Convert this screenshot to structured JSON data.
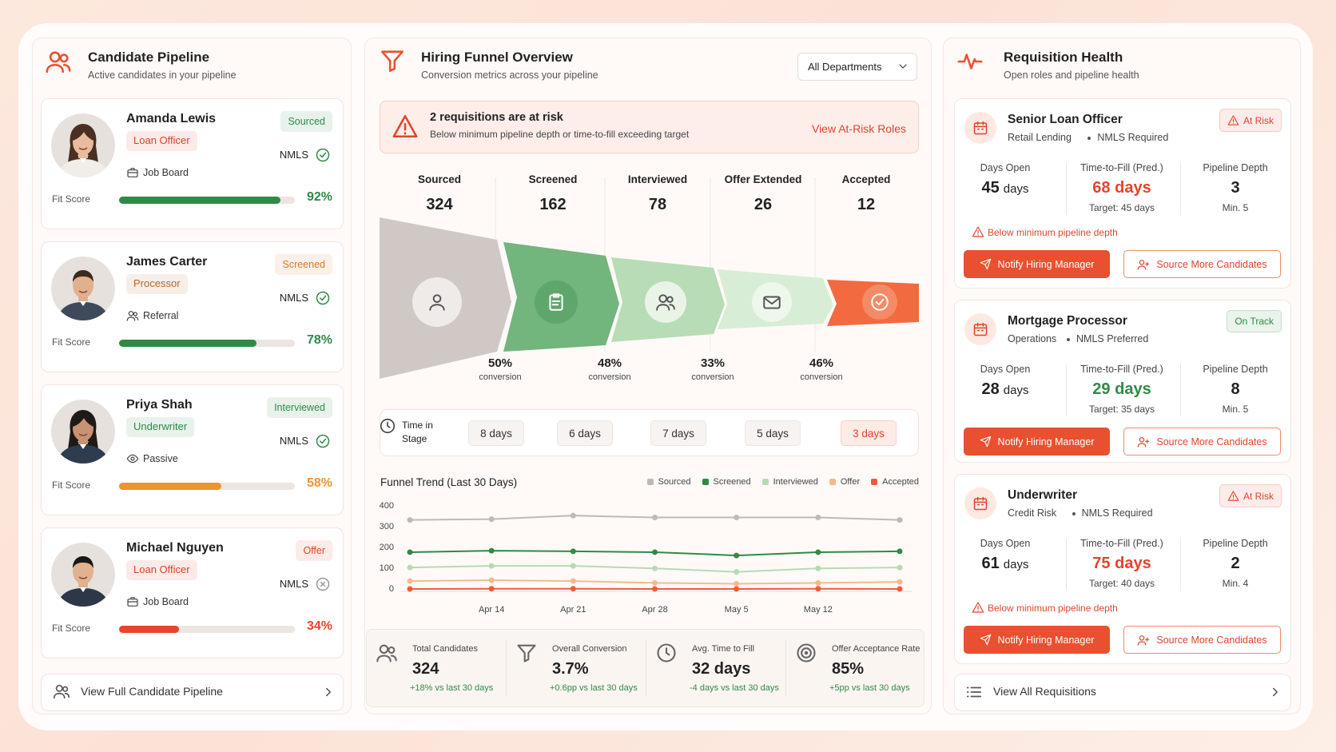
{
  "pipeline": {
    "title": "Candidate Pipeline",
    "subtitle": "Active candidates in your pipeline",
    "fit_score_label": "Fit Score",
    "candidates": [
      {
        "name": "Amanda Lewis",
        "stage": "Sourced",
        "stage_color": "#2e8b45",
        "role": "Loan Officer",
        "role_color": "#d9442a",
        "license": "NMLS",
        "license_verified": true,
        "source": "Job Board",
        "fit": 92,
        "fit_label": "92%",
        "fit_color": "#2e8b45"
      },
      {
        "name": "James Carter",
        "stage": "Screened",
        "stage_color": "#d97a2b",
        "role": "Processor",
        "role_color": "#b8652a",
        "license": "NMLS",
        "license_verified": true,
        "source": "Referral",
        "fit": 78,
        "fit_label": "78%",
        "fit_color": "#2e8b45"
      },
      {
        "name": "Priya Shah",
        "stage": "Interviewed",
        "stage_color": "#2e8b45",
        "role": "Underwriter",
        "role_color": "#2e8b45",
        "license": "NMLS",
        "license_verified": true,
        "source": "Passive",
        "fit": 58,
        "fit_label": "58%",
        "fit_color": "#f0932b"
      },
      {
        "name": "Michael Nguyen",
        "stage": "Offer",
        "stage_color": "#e0452b",
        "role": "Loan Officer",
        "role_color": "#d9442a",
        "license": "NMLS",
        "license_verified": false,
        "source": "Job Board",
        "fit": 34,
        "fit_label": "34%",
        "fit_color": "#e8452b"
      }
    ],
    "footer": "View Full Candidate Pipeline"
  },
  "funnel": {
    "title": "Hiring Funnel Overview",
    "subtitle": "Conversion metrics across your pipeline",
    "filter": "All Departments",
    "alert": {
      "title": "2 requisitions are at risk",
      "text": "Below minimum pipeline depth or time-to-fill exceeding target",
      "action": "View At-Risk Roles"
    },
    "stages": [
      {
        "name": "Sourced",
        "count": 324,
        "time": "8 days"
      },
      {
        "name": "Screened",
        "count": 162,
        "time": "6 days"
      },
      {
        "name": "Interviewed",
        "count": 78,
        "time": "7 days"
      },
      {
        "name": "Offer Extended",
        "count": 26,
        "time": "5 days"
      },
      {
        "name": "Accepted",
        "count": 12,
        "time": "3 days"
      }
    ],
    "conversions": [
      "50%",
      "48%",
      "33%",
      "46%"
    ],
    "conversion_text": "conversion",
    "time_label": "Time in Stage"
  },
  "chart_data": {
    "type": "line",
    "title": "Funnel Trend (Last 30 Days)",
    "categories": [
      null,
      "Apr 14",
      "Apr 21",
      "Apr 28",
      "May 5",
      "May 12",
      null
    ],
    "series": [
      {
        "name": "Sourced",
        "color": "#bdbab8",
        "values": [
          336,
          340,
          357,
          348,
          348,
          348,
          336
        ]
      },
      {
        "name": "Screened",
        "color": "#2e8b45",
        "values": [
          181,
          188,
          185,
          181,
          165,
          181,
          185
        ]
      },
      {
        "name": "Interviewed",
        "color": "#b5dbb4",
        "values": [
          107,
          115,
          115,
          103,
          86,
          103,
          107
        ]
      },
      {
        "name": "Offer",
        "color": "#f7b98a",
        "values": [
          42,
          46,
          42,
          33,
          29,
          33,
          38
        ]
      },
      {
        "name": "Accepted",
        "color": "#ef5b3a",
        "values": [
          4,
          5,
          5,
          4,
          4,
          5,
          4
        ]
      }
    ],
    "ylim": [
      0,
      400
    ],
    "yticks": [
      0,
      100,
      200,
      300,
      400
    ],
    "grid": false
  },
  "kpis": [
    {
      "label": "Total Candidates",
      "value": "324",
      "delta": "+18% vs last 30 days"
    },
    {
      "label": "Overall Conversion",
      "value": "3.7%",
      "delta": "+0.6pp vs last 30 days"
    },
    {
      "label": "Avg. Time to Fill",
      "value": "32 days",
      "delta": "-4 days vs last 30 days"
    },
    {
      "label": "Offer Acceptance Rate",
      "value": "85%",
      "delta": "+5pp vs last 30 days"
    }
  ],
  "requisitions": {
    "title": "Requisition Health",
    "subtitle": "Open roles and pipeline health",
    "labels": {
      "days_open": "Days Open",
      "ttf": "Time-to-Fill (Pred.)",
      "depth": "Pipeline Depth",
      "unit": "days"
    },
    "actions": {
      "notify": "Notify Hiring Manager",
      "source": "Source More Candidates"
    },
    "items": [
      {
        "title": "Senior Loan Officer",
        "dept": "Retail Lending",
        "req": "NMLS Required",
        "status": "At Risk",
        "color": "#e0452b",
        "days_open": 45,
        "ttf": "68 days",
        "target": "Target: 45 days",
        "depth": 3,
        "min": "Min. 5",
        "warning": "Below minimum pipeline depth"
      },
      {
        "title": "Mortgage Processor",
        "dept": "Operations",
        "req": "NMLS Preferred",
        "status": "On Track",
        "color": "#2e8b45",
        "days_open": 28,
        "ttf": "29 days",
        "target": "Target: 35 days",
        "depth": 8,
        "min": "Min. 5"
      },
      {
        "title": "Underwriter",
        "dept": "Credit Risk",
        "req": "NMLS Required",
        "status": "At Risk",
        "color": "#e0452b",
        "days_open": 61,
        "ttf": "75 days",
        "target": "Target: 40 days",
        "depth": 2,
        "min": "Min. 4",
        "warning": "Below minimum pipeline depth"
      }
    ],
    "footer": "View All Requisitions"
  }
}
